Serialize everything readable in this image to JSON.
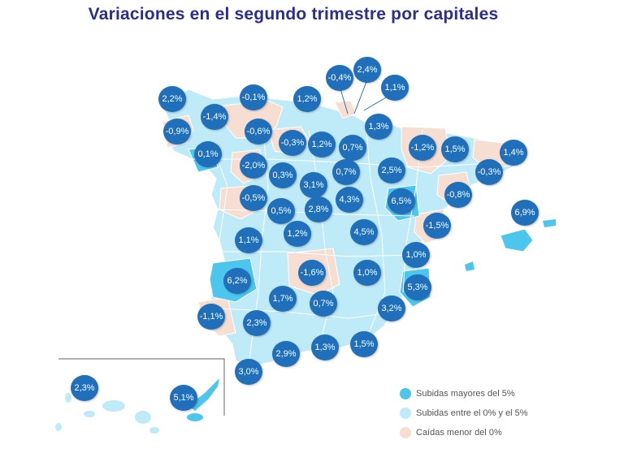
{
  "title": "Variaciones en el segundo trimestre por capitales",
  "colors": {
    "mayores_5": "#4dc6ee",
    "entre_0_5": "#bfeaf8",
    "caidas": "#f6dfd2",
    "bubble": "#1f6fba",
    "title": "#2b2e8c"
  },
  "legend": [
    {
      "label": "Subidas mayores del 5%",
      "color": "#4dc6ee"
    },
    {
      "label": "Subidas entre el 0% y el 5%",
      "color": "#bfeaf8"
    },
    {
      "label": "Caídas menor del 0%",
      "color": "#f6dfd2"
    }
  ],
  "values": [
    "-0,4%",
    "2,4%",
    "1,1%",
    "2,2%",
    "-0,1%",
    "1,2%",
    "-1,4%",
    "-0,9%",
    "-0,6%",
    "1,3%",
    "0,1%",
    "-0,3%",
    "1,2%",
    "0,7%",
    "-1,2%",
    "1,5%",
    "1,4%",
    "-2,0%",
    "0,7%",
    "2,5%",
    "-0,3%",
    "0,3%",
    "3,1%",
    "-0,5%",
    "4,3%",
    "6,5%",
    "-0,8%",
    "0,5%",
    "2,8%",
    "6,9%",
    "1,2%",
    "4,5%",
    "-1,5%",
    "1,1%",
    "1,0%",
    "-1,6%",
    "1,0%",
    "6,2%",
    "5,3%",
    "1,7%",
    "0,7%",
    "3,2%",
    "-1,1%",
    "2,3%",
    "1,3%",
    "1,5%",
    "2,9%",
    "3,0%",
    "2,3%",
    "5,1%"
  ]
}
